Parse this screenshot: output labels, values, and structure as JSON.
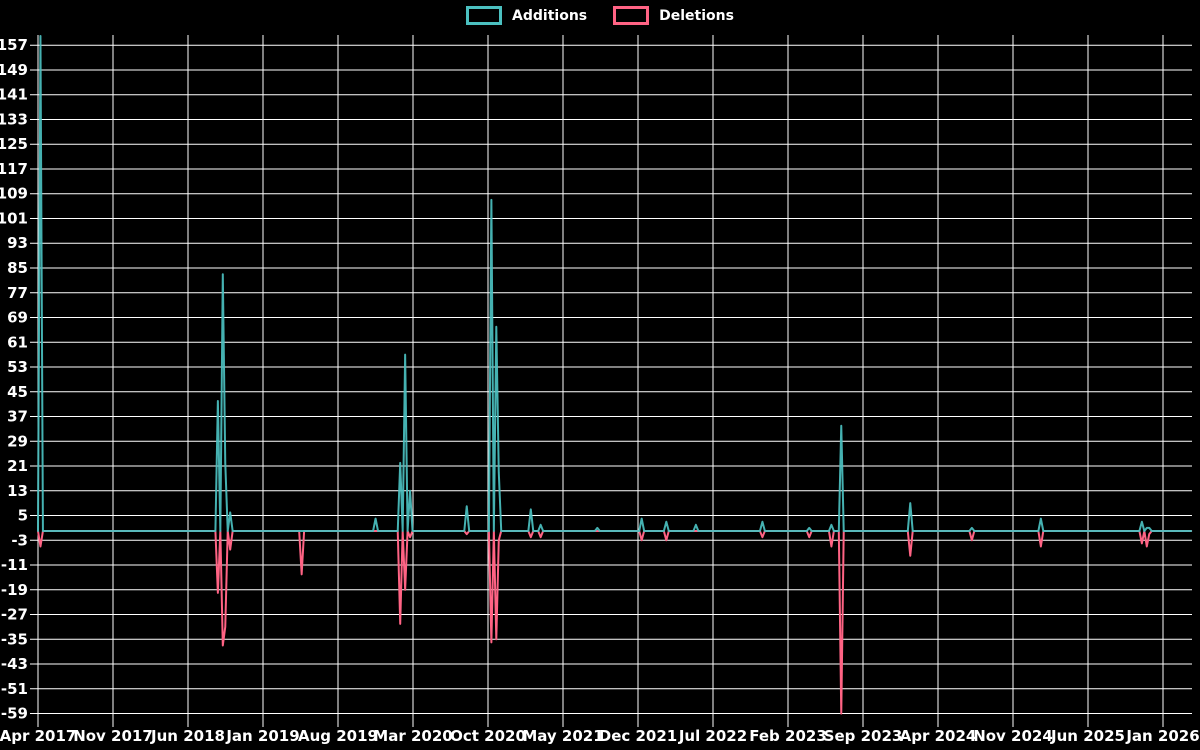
{
  "legend": {
    "items": [
      {
        "label": "Additions",
        "color": "#4bc0c0"
      },
      {
        "label": "Deletions",
        "color": "#ff6384"
      }
    ]
  },
  "colors": {
    "background": "#000000",
    "grid": "#ffffff",
    "text": "#ffffff",
    "additions": "#4bc0c0",
    "deletions": "#ff6384"
  },
  "chart_data": {
    "type": "line",
    "title": "",
    "xlabel": "",
    "ylabel": "",
    "grid": true,
    "legend_position": "top-center",
    "x_axis": {
      "tick_labels": [
        "Apr 2017",
        "Nov 2017",
        "Jun 2018",
        "Jan 2019",
        "Aug 2019",
        "Mar 2020",
        "Oct 2020",
        "May 2021",
        "Dec 2021",
        "Jul 2022",
        "Feb 2023",
        "Sep 2023",
        "Apr 2024",
        "Nov 2024",
        "Jun 2025",
        "Jan 2026"
      ],
      "tick_interval_months": 7
    },
    "y_axis": {
      "tick_values": [
        157,
        149,
        141,
        133,
        125,
        117,
        109,
        101,
        93,
        85,
        77,
        69,
        61,
        53,
        45,
        37,
        29,
        21,
        13,
        5,
        -3,
        -11,
        -19,
        -27,
        -35,
        -43,
        -51,
        -59
      ],
      "min": -59,
      "max": 157,
      "step": 8
    },
    "resolution": "weekly",
    "weeks_total": 468,
    "baseline_value": 0,
    "note": "Sparse weekly git-style additions/deletions series; weeks not listed are 0 for both series. Deletions plotted as negative values. The Apr 2017 additions spike is clipped at the top of the plot (~160).",
    "series": [
      {
        "name": "Additions",
        "color": "#4bc0c0"
      },
      {
        "name": "Deletions",
        "color": "#ff6384"
      }
    ],
    "events": [
      {
        "week": 1,
        "approx_date": "Apr 2017",
        "additions": 160,
        "deletions": -5
      },
      {
        "week": 73,
        "approx_date": "Sep 2018",
        "additions": 42,
        "deletions": -20
      },
      {
        "week": 75,
        "approx_date": "Sep 2018",
        "additions": 83,
        "deletions": -37
      },
      {
        "week": 76,
        "approx_date": "Oct 2018",
        "additions": 22,
        "deletions": -31
      },
      {
        "week": 78,
        "approx_date": "Oct 2018",
        "additions": 6,
        "deletions": -6
      },
      {
        "week": 107,
        "approx_date": "May 2019",
        "additions": 0,
        "deletions": -14
      },
      {
        "week": 137,
        "approx_date": "Dec 2019",
        "additions": 4,
        "deletions": 0
      },
      {
        "week": 147,
        "approx_date": "Feb 2020",
        "additions": 22,
        "deletions": -30
      },
      {
        "week": 149,
        "approx_date": "Mar 2020",
        "additions": 57,
        "deletions": -19
      },
      {
        "week": 151,
        "approx_date": "Mar 2020",
        "additions": 13,
        "deletions": -2
      },
      {
        "week": 174,
        "approx_date": "Aug 2020",
        "additions": 8,
        "deletions": -1
      },
      {
        "week": 184,
        "approx_date": "Oct 2020",
        "additions": 107,
        "deletions": -36
      },
      {
        "week": 186,
        "approx_date": "Nov 2020",
        "additions": 66,
        "deletions": -35
      },
      {
        "week": 187,
        "approx_date": "Nov 2020",
        "additions": 19,
        "deletions": -3
      },
      {
        "week": 200,
        "approx_date": "Feb 2021",
        "additions": 7,
        "deletions": -2
      },
      {
        "week": 204,
        "approx_date": "Mar 2021",
        "additions": 2,
        "deletions": -2
      },
      {
        "week": 227,
        "approx_date": "Aug 2021",
        "additions": 1,
        "deletions": 0
      },
      {
        "week": 245,
        "approx_date": "Dec 2021",
        "additions": 4,
        "deletions": -3
      },
      {
        "week": 255,
        "approx_date": "Mar 2022",
        "additions": 3,
        "deletions": -3
      },
      {
        "week": 267,
        "approx_date": "May 2022",
        "additions": 2,
        "deletions": 0
      },
      {
        "week": 294,
        "approx_date": "Dec 2022",
        "additions": 3,
        "deletions": -2
      },
      {
        "week": 313,
        "approx_date": "Apr 2023",
        "additions": 1,
        "deletions": -2
      },
      {
        "week": 322,
        "approx_date": "Jun 2023",
        "additions": 2,
        "deletions": -5
      },
      {
        "week": 326,
        "approx_date": "Jul 2023",
        "additions": 34,
        "deletions": -59
      },
      {
        "week": 354,
        "approx_date": "Jan 2024",
        "additions": 9,
        "deletions": -8
      },
      {
        "week": 379,
        "approx_date": "Jul 2024",
        "additions": 1,
        "deletions": -3
      },
      {
        "week": 407,
        "approx_date": "Feb 2025",
        "additions": 4,
        "deletions": -5
      },
      {
        "week": 448,
        "approx_date": "Nov 2025",
        "additions": 3,
        "deletions": -4
      },
      {
        "week": 450,
        "approx_date": "Dec 2025",
        "additions": 1,
        "deletions": -5
      },
      {
        "week": 451,
        "approx_date": "Dec 2025",
        "additions": 1,
        "deletions": -1
      }
    ]
  }
}
